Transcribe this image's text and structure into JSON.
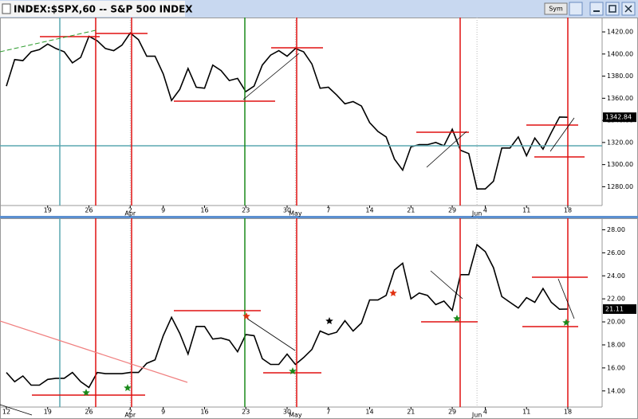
{
  "window": {
    "title": "INDEX:$SPX,60 -- S&P 500 INDEX",
    "sym_button": "Sym"
  },
  "chart_data": [
    {
      "type": "line",
      "color": "#000000",
      "categories": [
        null,
        null,
        null,
        null,
        null,
        "19",
        null,
        null,
        null,
        null,
        "26",
        null,
        null,
        null,
        null,
        "2",
        null,
        null,
        null,
        "9",
        null,
        null,
        null,
        null,
        "16",
        null,
        null,
        null,
        null,
        "23",
        null,
        null,
        null,
        null,
        "30",
        null,
        null,
        null,
        null,
        "7",
        null,
        null,
        null,
        null,
        "14",
        null,
        null,
        null,
        null,
        "21",
        null,
        null,
        null,
        null,
        "29",
        null,
        null,
        null,
        "4",
        null,
        null,
        null,
        null,
        "11",
        null,
        null,
        null,
        null,
        "18"
      ],
      "month_labels": [
        null,
        null,
        null,
        null,
        null,
        null,
        null,
        null,
        null,
        null,
        null,
        null,
        null,
        null,
        null,
        "Apr",
        null,
        null,
        null,
        null,
        null,
        null,
        null,
        null,
        null,
        null,
        null,
        null,
        null,
        null,
        null,
        null,
        null,
        null,
        null,
        "May",
        null,
        null,
        null,
        null,
        null,
        null,
        null,
        null,
        null,
        null,
        null,
        null,
        null,
        null,
        null,
        null,
        null,
        null,
        null,
        null,
        null,
        "Jun",
        null,
        null,
        null,
        null,
        null,
        null,
        null,
        null,
        null,
        null,
        null
      ],
      "values": [
        1371,
        1395,
        1394,
        1402,
        1404,
        1409,
        1405,
        1402,
        1392,
        1397,
        1416,
        1412,
        1405,
        1403,
        1408,
        1419,
        1413,
        1398,
        1398,
        1382,
        1358,
        1368,
        1387,
        1370,
        1369,
        1390,
        1385,
        1376,
        1378,
        1366,
        1371,
        1390,
        1399,
        1403,
        1398,
        1405,
        1402,
        1391,
        1369,
        1370,
        1363,
        1355,
        1357,
        1353,
        1338,
        1330,
        1325,
        1305,
        1295,
        1316,
        1318,
        1318,
        1320,
        1317,
        1332,
        1313,
        1310,
        1278,
        1278,
        1285,
        1315,
        1315,
        1325,
        1308,
        1324,
        1314,
        1329,
        1343,
        1342.84
      ],
      "last_value": 1342.84,
      "ylim": [
        1263,
        1433
      ],
      "yticks": [
        {
          "value": 1280,
          "label": "1280.00"
        },
        {
          "value": 1300,
          "label": "1300.00"
        },
        {
          "value": 1320,
          "label": "1320.00"
        },
        {
          "value": 1340,
          "label": "1340.00"
        },
        {
          "value": 1360,
          "label": "1360.00"
        },
        {
          "value": 1380,
          "label": "1380.00"
        },
        {
          "value": 1400,
          "label": "1400.00"
        },
        {
          "value": 1420,
          "label": "1420.00"
        }
      ]
    },
    {
      "type": "line",
      "color": "#000000",
      "categories": [
        "12",
        null,
        null,
        null,
        null,
        "19",
        null,
        null,
        null,
        null,
        "26",
        null,
        null,
        null,
        null,
        "2",
        null,
        null,
        null,
        "9",
        null,
        null,
        null,
        null,
        "16",
        null,
        null,
        null,
        null,
        "23",
        null,
        null,
        null,
        null,
        "30",
        null,
        null,
        null,
        null,
        "7",
        null,
        null,
        null,
        null,
        "14",
        null,
        null,
        null,
        null,
        "21",
        null,
        null,
        null,
        null,
        "29",
        null,
        null,
        null,
        "4",
        null,
        null,
        null,
        null,
        "11",
        null,
        null,
        null,
        null,
        "18"
      ],
      "month_labels": [
        null,
        null,
        null,
        null,
        null,
        null,
        null,
        null,
        null,
        null,
        null,
        null,
        null,
        null,
        null,
        "Apr",
        null,
        null,
        null,
        null,
        null,
        null,
        null,
        null,
        null,
        null,
        null,
        null,
        null,
        null,
        null,
        null,
        null,
        null,
        null,
        "May",
        null,
        null,
        null,
        null,
        null,
        null,
        null,
        null,
        null,
        null,
        null,
        null,
        null,
        null,
        null,
        null,
        null,
        null,
        null,
        null,
        null,
        "Jun",
        null,
        null,
        null,
        null,
        null,
        null,
        null,
        null,
        null,
        null,
        null
      ],
      "values": [
        15.6,
        14.8,
        15.3,
        14.5,
        14.5,
        15.0,
        15.1,
        15.1,
        15.6,
        14.8,
        14.3,
        15.6,
        15.5,
        15.5,
        15.5,
        15.6,
        15.6,
        16.4,
        16.7,
        18.8,
        20.4,
        19.0,
        17.2,
        19.6,
        19.6,
        18.5,
        18.6,
        18.4,
        17.4,
        18.9,
        18.8,
        16.8,
        16.3,
        16.3,
        17.2,
        16.3,
        16.9,
        17.6,
        19.2,
        18.9,
        19.1,
        20.1,
        19.2,
        19.9,
        21.9,
        21.9,
        22.3,
        24.5,
        25.1,
        22.0,
        22.5,
        22.3,
        21.5,
        21.8,
        21.0,
        24.1,
        24.1,
        26.7,
        26.1,
        24.7,
        22.2,
        21.7,
        21.2,
        22.1,
        21.7,
        22.9,
        21.7,
        21.1,
        21.11
      ],
      "last_value": 21.11,
      "ylim": [
        12.6,
        29
      ],
      "yticks": [
        {
          "value": 14,
          "label": "14.00"
        },
        {
          "value": 16,
          "label": "16.00"
        },
        {
          "value": 18,
          "label": "18.00"
        },
        {
          "value": 20,
          "label": "20.00"
        },
        {
          "value": 22,
          "label": "22.00"
        },
        {
          "value": 24,
          "label": "24.00"
        },
        {
          "value": 26,
          "label": "26.00"
        },
        {
          "value": 28,
          "label": "28.00"
        }
      ]
    }
  ]
}
